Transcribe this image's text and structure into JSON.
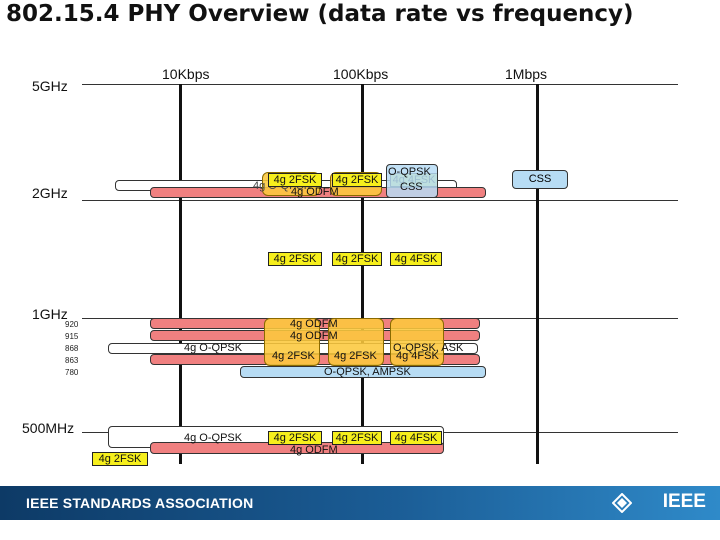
{
  "title": "802.15.4 PHY Overview (data rate vs frequency)",
  "rates": [
    "10Kbps",
    "100Kbps",
    "1Mbps"
  ],
  "freqs": [
    "5GHz",
    "2GHz",
    "1GHz",
    "500MHz"
  ],
  "sub_freqs": [
    "920",
    "915",
    "868",
    "863",
    "780"
  ],
  "tags": {
    "fsk2": "4g 2FSK",
    "fsk4": "4g 4FSK",
    "ofdm": "4g ODFM",
    "oqpsk4g": "4g O-QPSK",
    "oqpsk": "O-QPSK",
    "css": "CSS",
    "oqpsk_ampsk": "O-QPSK, AMPSK",
    "oqpsk_ask": "O-QPSK, ASK"
  },
  "footer": {
    "org": "IEEE STANDARDS ASSOCIATION",
    "brand": "IEEE"
  },
  "colors": {
    "red_bar": "#f08080",
    "white_bar": "#ffffff",
    "blue_bar": "#b7dcf4",
    "yellow_tag": "#f6ef1c",
    "orange_overlay": "#fcc83c",
    "footer_blue": "#1b5d96"
  }
}
